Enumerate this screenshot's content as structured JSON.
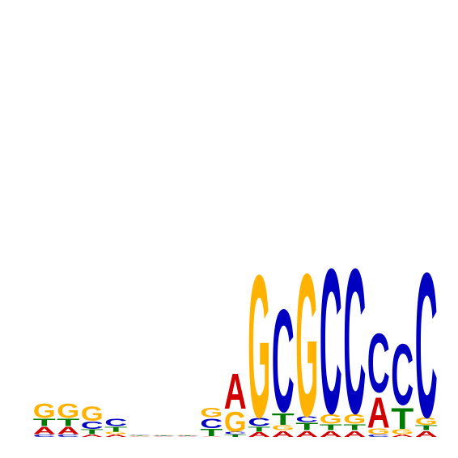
{
  "chart_data": {
    "type": "sequence-logo",
    "title": "",
    "xlabel": "",
    "ylabel": "",
    "ylim": [
      0,
      2
    ],
    "colors": {
      "A": "#d00000",
      "C": "#0000c0",
      "G": "#ffb300",
      "T": "#007a00"
    },
    "positions": [
      {
        "index": 1,
        "stack": [
          [
            "C",
            0.02
          ],
          [
            "A",
            0.06
          ],
          [
            "T",
            0.06
          ],
          [
            "G",
            0.12
          ]
        ]
      },
      {
        "index": 2,
        "stack": [
          [
            "C",
            0.02
          ],
          [
            "A",
            0.06
          ],
          [
            "T",
            0.06
          ],
          [
            "G",
            0.12
          ]
        ]
      },
      {
        "index": 3,
        "stack": [
          [
            "A",
            0.02
          ],
          [
            "T",
            0.04
          ],
          [
            "C",
            0.06
          ],
          [
            "G",
            0.12
          ]
        ]
      },
      {
        "index": 4,
        "stack": [
          [
            "A",
            0.02
          ],
          [
            "G",
            0.02
          ],
          [
            "T",
            0.04
          ],
          [
            "C",
            0.06
          ]
        ]
      },
      {
        "index": 5,
        "stack": [
          [
            "A",
            0.005
          ],
          [
            "T",
            0.005
          ],
          [
            "G",
            0.005
          ],
          [
            "C",
            0.005
          ]
        ]
      },
      {
        "index": 6,
        "stack": [
          [
            "A",
            0.005
          ],
          [
            "C",
            0.005
          ],
          [
            "T",
            0.005
          ],
          [
            "G",
            0.005
          ]
        ]
      },
      {
        "index": 7,
        "stack": [
          [
            "A",
            0.005
          ],
          [
            "T",
            0.005
          ],
          [
            "C",
            0.005
          ],
          [
            "G",
            0.005
          ]
        ]
      },
      {
        "index": 8,
        "stack": [
          [
            "A",
            0.005
          ],
          [
            "T",
            0.06
          ],
          [
            "C",
            0.08
          ],
          [
            "G",
            0.08
          ]
        ]
      },
      {
        "index": 9,
        "stack": [
          [
            "T",
            0.02
          ],
          [
            "C",
            0.02
          ],
          [
            "G",
            0.17
          ],
          [
            "A",
            0.3
          ]
        ]
      },
      {
        "index": 10,
        "stack": [
          [
            "A",
            0.04
          ],
          [
            "T",
            0.04
          ],
          [
            "C",
            0.07
          ],
          [
            "G",
            1.21
          ]
        ]
      },
      {
        "index": 11,
        "stack": [
          [
            "A",
            0.05
          ],
          [
            "G",
            0.04
          ],
          [
            "T",
            0.1
          ],
          [
            "C",
            0.87
          ]
        ]
      },
      {
        "index": 12,
        "stack": [
          [
            "A",
            0.05
          ],
          [
            "T",
            0.06
          ],
          [
            "C",
            0.05
          ],
          [
            "G",
            1.21
          ]
        ]
      },
      {
        "index": 13,
        "stack": [
          [
            "A",
            0.05
          ],
          [
            "T",
            0.05
          ],
          [
            "G",
            0.08
          ],
          [
            "C",
            1.23
          ]
        ]
      },
      {
        "index": 14,
        "stack": [
          [
            "A",
            0.05
          ],
          [
            "T",
            0.05
          ],
          [
            "G",
            0.08
          ],
          [
            "C",
            1.23
          ]
        ]
      },
      {
        "index": 15,
        "stack": [
          [
            "C",
            0.02
          ],
          [
            "G",
            0.05
          ],
          [
            "A",
            0.26
          ],
          [
            "C",
            0.5
          ]
        ]
      },
      {
        "index": 16,
        "stack": [
          [
            "A",
            0.02
          ],
          [
            "G",
            0.04
          ],
          [
            "T",
            0.18
          ],
          [
            "C",
            0.52
          ]
        ]
      },
      {
        "index": 17,
        "stack": [
          [
            "A",
            0.05
          ],
          [
            "T",
            0.04
          ],
          [
            "G",
            0.06
          ],
          [
            "C",
            1.23
          ]
        ]
      }
    ]
  }
}
